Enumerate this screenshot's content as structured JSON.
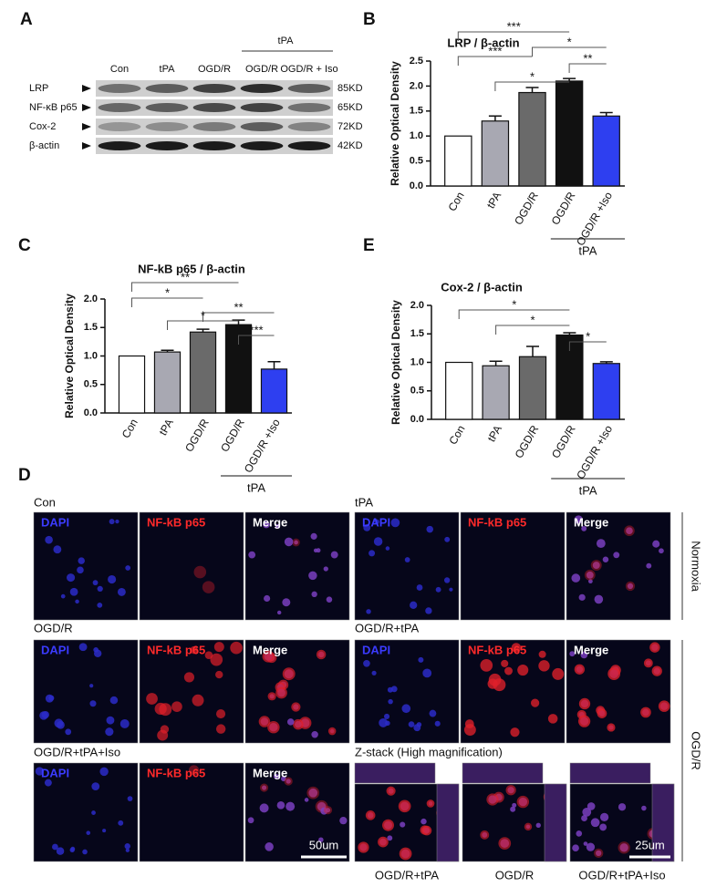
{
  "blot": {
    "panel": "A",
    "lanes": [
      "Con",
      "tPA",
      "OGD/R",
      "OGD/R",
      "OGD/R + Iso"
    ],
    "group": "tPA",
    "rows": [
      {
        "name": "LRP",
        "size": "85KD"
      },
      {
        "name": "NF-κB p65",
        "size": "65KD"
      },
      {
        "name": "Cox-2",
        "size": "72KD"
      },
      {
        "name": "β-actin",
        "size": "42KD"
      }
    ]
  },
  "chart_data": [
    {
      "type": "bar",
      "panel": "B",
      "title": "LRP / β-actin",
      "y_label": "Relative Optical Density",
      "categories": [
        "Con",
        "tPA",
        "OGD/R",
        "OGD/R",
        "OGD/R +Iso"
      ],
      "values": [
        1.0,
        1.3,
        1.87,
        2.1,
        1.4
      ],
      "errors": [
        null,
        0.1,
        0.1,
        0.05,
        0.07
      ],
      "colors": [
        "#ffffff",
        "#a8a8b2",
        "#6a6a6a",
        "#111111",
        "#2e3ff0"
      ],
      "ylim": [
        0,
        2.5
      ],
      "yticks": [
        {
          "value": 0,
          "label": "0.0"
        },
        0.5,
        {
          "value": 1,
          "label": "1.0"
        },
        1.5,
        {
          "value": 2,
          "label": "2.0"
        },
        2.5
      ],
      "group": {
        "label": "tPA",
        "from": 3,
        "to": 4
      },
      "significance": [
        {
          "label": "***",
          "from": 0,
          "to": 3
        },
        {
          "label": "*",
          "from": 2,
          "to": 4
        },
        {
          "label": "***",
          "from": 0,
          "to": 2
        },
        {
          "label": "**",
          "from": 3,
          "to": 4
        },
        {
          "label": "*",
          "from": 1,
          "to": 3
        }
      ]
    },
    {
      "type": "bar",
      "panel": "C",
      "title": "NF-kB p65 / β-actin",
      "y_label": "Relative Optical Density",
      "categories": [
        "Con",
        "tPA",
        "OGD/R",
        "OGD/R",
        "OGD/R +Iso"
      ],
      "values": [
        1.0,
        1.07,
        1.42,
        1.55,
        0.77
      ],
      "errors": [
        null,
        0.03,
        0.05,
        0.08,
        0.13
      ],
      "colors": [
        "#ffffff",
        "#a8a8b2",
        "#6a6a6a",
        "#111111",
        "#2e3ff0"
      ],
      "ylim": [
        0,
        2.0
      ],
      "yticks": [
        {
          "value": 0,
          "label": "0.0"
        },
        0.5,
        {
          "value": 1,
          "label": "1.0"
        },
        1.5,
        {
          "value": 2,
          "label": "2.0"
        }
      ],
      "group": {
        "label": "tPA",
        "from": 3,
        "to": 4
      },
      "significance": [
        {
          "label": "**",
          "from": 0,
          "to": 3
        },
        {
          "label": "*",
          "from": 0,
          "to": 2
        },
        {
          "label": "**",
          "from": 2,
          "to": 4
        },
        {
          "label": "*",
          "from": 1,
          "to": 3
        },
        {
          "label": "***",
          "from": 3,
          "to": 4
        }
      ]
    },
    {
      "type": "bar",
      "panel": "E",
      "title": "Cox-2 / β-actin",
      "y_label": "Relative Optical Density",
      "categories": [
        "Con",
        "tPA",
        "OGD/R",
        "OGD/R",
        "OGD/R +Iso"
      ],
      "values": [
        1.0,
        0.94,
        1.1,
        1.48,
        0.98
      ],
      "errors": [
        null,
        0.08,
        0.18,
        0.04,
        0.03
      ],
      "colors": [
        "#ffffff",
        "#a8a8b2",
        "#6a6a6a",
        "#111111",
        "#2e3ff0"
      ],
      "ylim": [
        0,
        2.0
      ],
      "yticks": [
        {
          "value": 0,
          "label": "0.0"
        },
        0.5,
        {
          "value": 1,
          "label": "1.0"
        },
        1.5,
        {
          "value": 2,
          "label": "2.0"
        }
      ],
      "group": {
        "label": "tPA",
        "from": 3,
        "to": 4
      },
      "significance": [
        {
          "label": "*",
          "from": 0,
          "to": 3
        },
        {
          "label": "*",
          "from": 1,
          "to": 3
        },
        {
          "label": "*",
          "from": 3,
          "to": 4
        }
      ]
    }
  ],
  "imaging": {
    "panel": "D",
    "conditions": [
      "Con",
      "tPA",
      "OGD/R",
      "OGD/R+tPA",
      "OGD/R+tPA+Iso"
    ],
    "channels": [
      "DAPI",
      "NF-kB p65",
      "Merge"
    ],
    "side_labels": [
      "Normoxia",
      "OGD/R"
    ],
    "scale_bars": [
      "50um",
      "25um"
    ],
    "z_stack": {
      "title": "Z-stack (High magnification)",
      "labels": [
        "OGD/R+tPA",
        "OGD/R",
        "OGD/R+tPA+Iso"
      ]
    }
  }
}
